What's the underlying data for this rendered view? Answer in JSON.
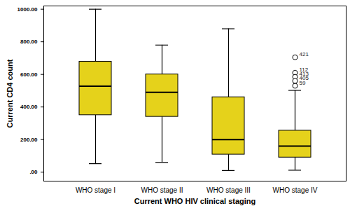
{
  "chart_data": {
    "type": "box",
    "x_label": "Current WHO HIV clinical staging",
    "y_label": "Current CD4 count",
    "categories": [
      "WHO stage I",
      "WHO stage II",
      "WHO stage III",
      "WHO stage IV"
    ],
    "stats": [
      {
        "min": 52,
        "q1": 350,
        "median": 528,
        "q3": 678,
        "max": 1000,
        "outliers": []
      },
      {
        "min": 60,
        "q1": 340,
        "median": 490,
        "q3": 600,
        "max": 780,
        "outliers": []
      },
      {
        "min": 10,
        "q1": 108,
        "median": 200,
        "q3": 460,
        "max": 880,
        "outliers": []
      },
      {
        "min": 12,
        "q1": 90,
        "median": 160,
        "q3": 255,
        "max": 502,
        "outliers": [
          {
            "value": 705,
            "label": "421"
          },
          {
            "value": 610,
            "label": "112"
          },
          {
            "value": 585,
            "label": "413"
          },
          {
            "value": 560,
            "label": "405"
          },
          {
            "value": 530,
            "label": "59"
          }
        ]
      }
    ],
    "color": "#e5d21b",
    "ylim": [
      -55,
      1020
    ],
    "yticks": [
      {
        "value": 0,
        "label": ".00"
      },
      {
        "value": 200,
        "label": "200.00"
      },
      {
        "value": 400,
        "label": "400.00"
      },
      {
        "value": 600,
        "label": "600.00"
      },
      {
        "value": 800,
        "label": "800.00"
      },
      {
        "value": 1000,
        "label": "1000.00"
      }
    ],
    "grid": false
  }
}
